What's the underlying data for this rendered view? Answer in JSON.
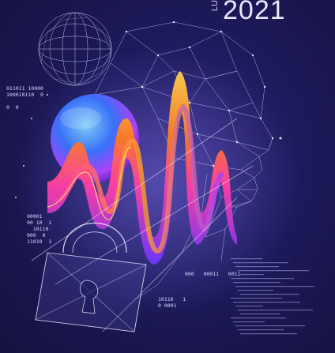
{
  "poster": {
    "year": "2021",
    "year_prefix": "LU",
    "binary": {
      "top_left": [
        "011011 10000",
        "100010110  0",
        "",
        "0  0"
      ],
      "bottom_left": [
        "00001",
        "00 10  1",
        "  10110",
        "000  0",
        "11010  1"
      ],
      "mid_right": "000   00011   0011",
      "bottom_center": [
        "10110   1",
        "0 0001"
      ]
    }
  },
  "colors": {
    "background": "#1d1a5c",
    "wave_hot": "#ff8a1f",
    "wave_mid": "#ff3fa7",
    "wave_cool": "#7b3cff",
    "mesh": "#cfd0ff"
  },
  "icons": {
    "globe": "wireframe-globe-icon",
    "head": "wireframe-head-icon",
    "sphere": "glossy-sphere-icon",
    "lock": "wireframe-padlock-icon",
    "wave": "sound-wave-icon"
  }
}
